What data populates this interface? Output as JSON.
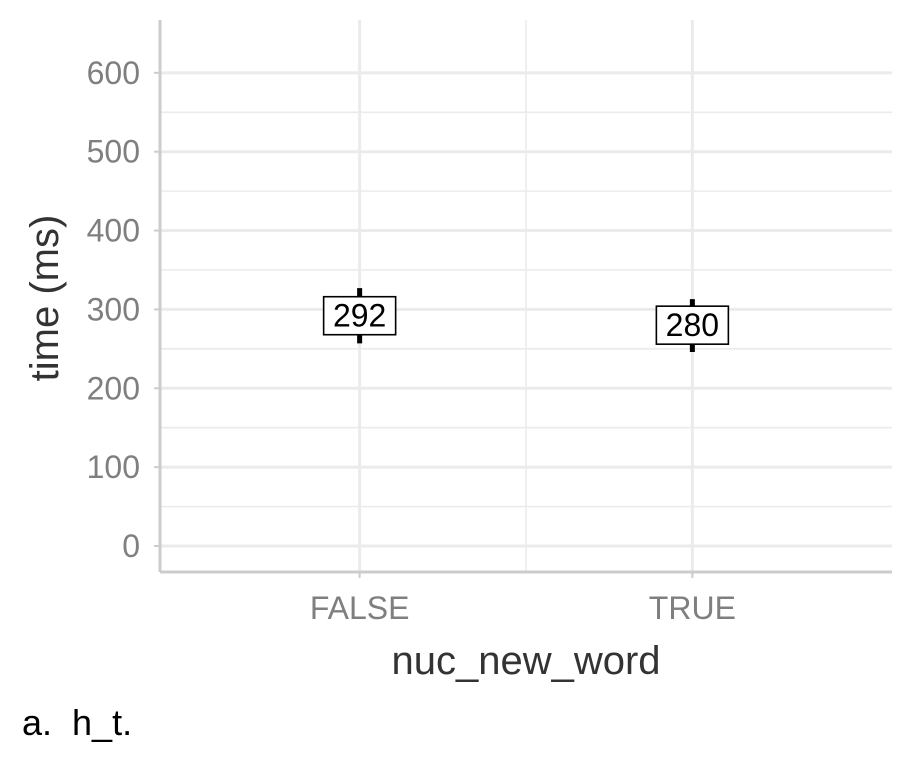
{
  "chart_data": {
    "type": "scatter",
    "categories": [
      "FALSE",
      "TRUE"
    ],
    "values": [
      292,
      280
    ],
    "data_labels": [
      "292",
      "280"
    ],
    "error_bars": [
      {
        "low": 257,
        "high": 327
      },
      {
        "low": 246,
        "high": 313
      }
    ],
    "title": "",
    "xlabel": "nuc_new_word",
    "ylabel": "time (ms)",
    "ylim": [
      -33,
      667
    ],
    "yticks": [
      0,
      100,
      200,
      300,
      400,
      500,
      600
    ],
    "ytick_labels": [
      "0",
      "100",
      "200",
      "300",
      "400",
      "500",
      "600"
    ],
    "grid": true,
    "legend": "none",
    "colors": {
      "grid": "#ebebeb",
      "axis": "#cccccc",
      "tick_text": "#7f7f7f",
      "title_text": "#333333",
      "mark": "#000000"
    }
  },
  "caption": "a.  h_t."
}
